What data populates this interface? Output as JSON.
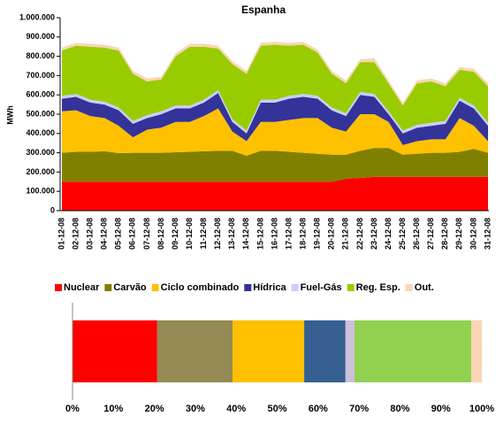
{
  "chart_data": [
    {
      "type": "area",
      "stacked": true,
      "title": "Espanha",
      "y_label": "MWh",
      "categories": [
        "01-12-08",
        "02-12-08",
        "03-12-08",
        "04-12-08",
        "05-12-08",
        "06-12-08",
        "07-12-08",
        "08-12-08",
        "09-12-08",
        "10-12-08",
        "11-12-08",
        "12-12-08",
        "13-12-08",
        "14-12-08",
        "15-12-08",
        "16-12-08",
        "17-12-08",
        "18-12-08",
        "19-12-08",
        "20-12-08",
        "21-12-08",
        "22-12-08",
        "23-12-08",
        "24-12-08",
        "25-12-08",
        "26-12-08",
        "27-12-08",
        "28-12-08",
        "29-12-08",
        "30-12-08",
        "31-12-08"
      ],
      "series": [
        {
          "name": "Nuclear",
          "color": "#ff0000",
          "values": [
            150000,
            150000,
            150000,
            150000,
            150000,
            150000,
            150000,
            150000,
            150000,
            150000,
            150000,
            150000,
            150000,
            150000,
            150000,
            150000,
            150000,
            150000,
            150000,
            150000,
            165000,
            170000,
            175000,
            175000,
            175000,
            175000,
            175000,
            175000,
            175000,
            175000,
            175000
          ]
        },
        {
          "name": "Carvão",
          "color": "#808000",
          "values": [
            150000,
            155000,
            155000,
            158000,
            148000,
            150000,
            150000,
            150000,
            153000,
            155000,
            158000,
            160000,
            160000,
            135000,
            160000,
            160000,
            155000,
            150000,
            145000,
            140000,
            125000,
            140000,
            150000,
            150000,
            115000,
            120000,
            125000,
            125000,
            130000,
            145000,
            125000
          ]
        },
        {
          "name": "Ciclo combinado",
          "color": "#ffc000",
          "values": [
            215000,
            215000,
            185000,
            172000,
            142000,
            80000,
            120000,
            130000,
            157000,
            155000,
            182000,
            220000,
            100000,
            75000,
            150000,
            150000,
            165000,
            180000,
            185000,
            140000,
            120000,
            190000,
            175000,
            135000,
            50000,
            65000,
            70000,
            70000,
            175000,
            120000,
            60000
          ]
        },
        {
          "name": "Hídrica",
          "color": "#333399",
          "values": [
            65000,
            70000,
            70000,
            70000,
            80000,
            70000,
            60000,
            70000,
            70000,
            70000,
            70000,
            80000,
            50000,
            40000,
            100000,
            100000,
            110000,
            110000,
            100000,
            90000,
            80000,
            100000,
            90000,
            40000,
            60000,
            70000,
            70000,
            80000,
            90000,
            90000,
            80000
          ]
        },
        {
          "name": "Fuel-Gás",
          "color": "#ccccff",
          "values": [
            15000,
            15000,
            15000,
            15000,
            15000,
            15000,
            15000,
            15000,
            15000,
            15000,
            15000,
            15000,
            15000,
            15000,
            15000,
            15000,
            15000,
            15000,
            15000,
            15000,
            15000,
            15000,
            15000,
            15000,
            15000,
            15000,
            15000,
            15000,
            15000,
            15000,
            15000
          ]
        },
        {
          "name": "Reg. Esp.",
          "color": "#99cc00",
          "values": [
            235000,
            250000,
            275000,
            280000,
            295000,
            245000,
            175000,
            165000,
            255000,
            305000,
            275000,
            215000,
            285000,
            295000,
            280000,
            285000,
            260000,
            255000,
            225000,
            175000,
            155000,
            155000,
            165000,
            145000,
            130000,
            215000,
            215000,
            180000,
            145000,
            175000,
            190000
          ]
        },
        {
          "name": "Out.",
          "color": "#fcd5b4",
          "values": [
            15000,
            15000,
            15000,
            15000,
            15000,
            15000,
            15000,
            15000,
            15000,
            15000,
            15000,
            15000,
            15000,
            15000,
            15000,
            15000,
            15000,
            15000,
            15000,
            15000,
            15000,
            15000,
            20000,
            15000,
            15000,
            15000,
            15000,
            15000,
            15000,
            15000,
            15000
          ]
        }
      ],
      "ylim": [
        0,
        1000000
      ],
      "yticks": [
        0,
        {
          "value": 100000,
          "label": "100.000"
        },
        {
          "value": 200000,
          "label": "200.000"
        },
        {
          "value": 300000,
          "label": "300.000"
        },
        {
          "value": 400000,
          "label": "400.000"
        },
        {
          "value": 500000,
          "label": "500.000"
        },
        {
          "value": 600000,
          "label": "600.000"
        },
        {
          "value": 700000,
          "label": "700.000"
        },
        {
          "value": 800000,
          "label": "800.000"
        },
        {
          "value": 900000,
          "label": "900.000"
        },
        {
          "value": 1000000,
          "label": "1.000.000"
        }
      ],
      "grid": false
    },
    {
      "type": "bar",
      "orientation": "horizontal",
      "stacked": true,
      "series": [
        {
          "color": "#ff0000",
          "values": [
            20.7
          ]
        },
        {
          "color": "#948a54",
          "values": [
            18.4
          ]
        },
        {
          "color": "#ffc000",
          "values": [
            17.5
          ]
        },
        {
          "color": "#366092",
          "values": [
            10.1
          ]
        },
        {
          "color": "#ccc0da",
          "values": [
            2.2
          ]
        },
        {
          "color": "#92d050",
          "values": [
            28.5
          ]
        },
        {
          "color": "#fcd5b4",
          "values": [
            2.6
          ]
        }
      ],
      "xlim": [
        0,
        100
      ],
      "xticks": [
        {
          "value": 0,
          "label": "0%"
        },
        {
          "value": 10,
          "label": "10%"
        },
        {
          "value": 20,
          "label": "20%"
        },
        {
          "value": 30,
          "label": "30%"
        },
        {
          "value": 40,
          "label": "40%"
        },
        {
          "value": 50,
          "label": "50%"
        },
        {
          "value": 60,
          "label": "60%"
        },
        {
          "value": 70,
          "label": "70%"
        },
        {
          "value": 80,
          "label": "80%"
        },
        {
          "value": 90,
          "label": "90%"
        },
        {
          "value": 100,
          "label": "100%"
        }
      ]
    }
  ]
}
